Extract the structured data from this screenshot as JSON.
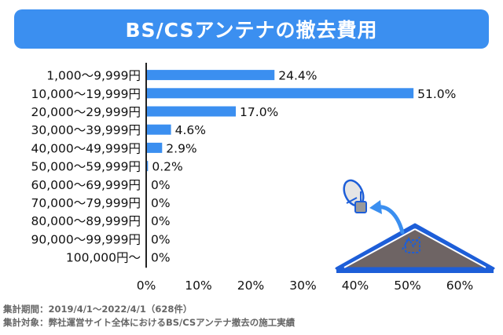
{
  "title": "BS/CSアンテナの撤去費用",
  "colors": {
    "title_bg": "#3b8ff0",
    "bar": "#3b8ff0",
    "axis": "#222222"
  },
  "chart_data": {
    "type": "bar",
    "orientation": "horizontal",
    "title": "BS/CSアンテナの撤去費用",
    "categories": [
      "1,000〜9,999円",
      "10,000〜19,999円",
      "20,000〜29,999円",
      "30,000〜39,999円",
      "40,000〜49,999円",
      "50,000〜59,999円",
      "60,000〜69,999円",
      "70,000〜79,999円",
      "80,000〜89,999円",
      "90,000〜99,999円",
      "100,000円〜"
    ],
    "values": [
      24.4,
      51.0,
      17.0,
      4.6,
      2.9,
      0.2,
      0,
      0,
      0,
      0,
      0
    ],
    "value_labels": [
      "24.4%",
      "51.0%",
      "17.0%",
      "4.6%",
      "2.9%",
      "0.2%",
      "0%",
      "0%",
      "0%",
      "0%",
      "0%"
    ],
    "xlim": [
      0,
      60
    ],
    "xticks": [
      0,
      10,
      20,
      30,
      40,
      50,
      60
    ],
    "xtick_labels": [
      "0%",
      "10%",
      "20%",
      "30%",
      "40%",
      "50%",
      "60%"
    ],
    "grid": false,
    "legend": "none"
  },
  "footnotes": {
    "period": "集計期間：2019/4/1〜2022/4/1（628件）",
    "target": "集計対象：弊社運営サイト全体におけるBS/CSアンテナ撤去の施工実績"
  },
  "illustration": {
    "icons": [
      "roof-icon",
      "antenna-icon",
      "arrow-icon"
    ]
  }
}
